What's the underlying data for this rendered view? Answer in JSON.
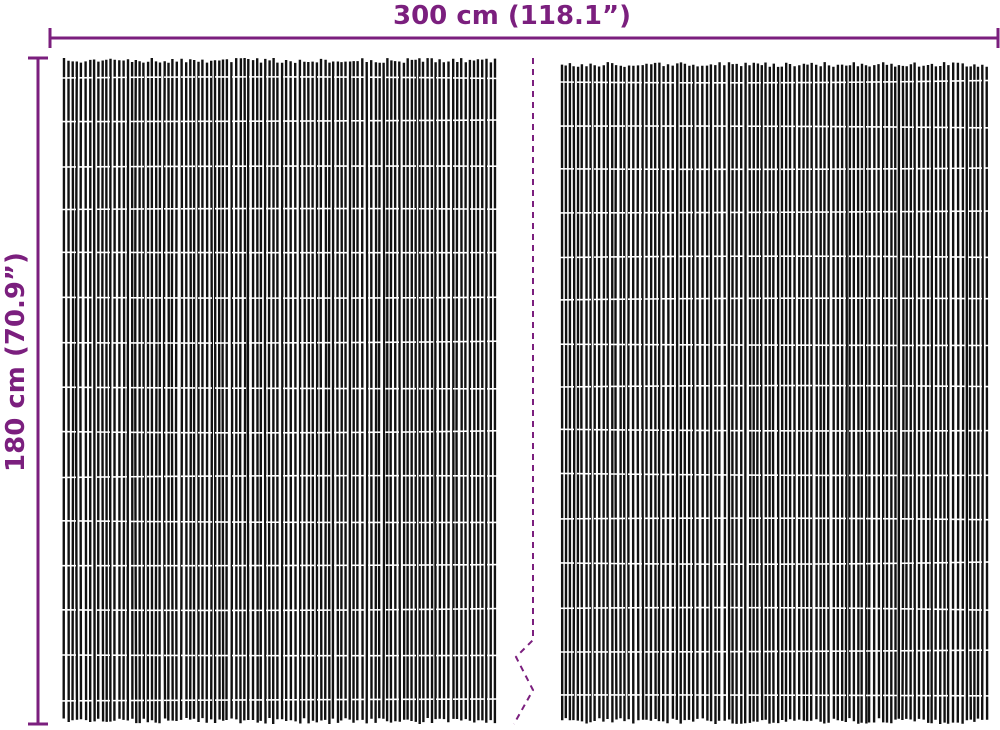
{
  "dimensions": {
    "width": "300 cm (118.1”)",
    "height": "180 cm (70.9”)"
  }
}
